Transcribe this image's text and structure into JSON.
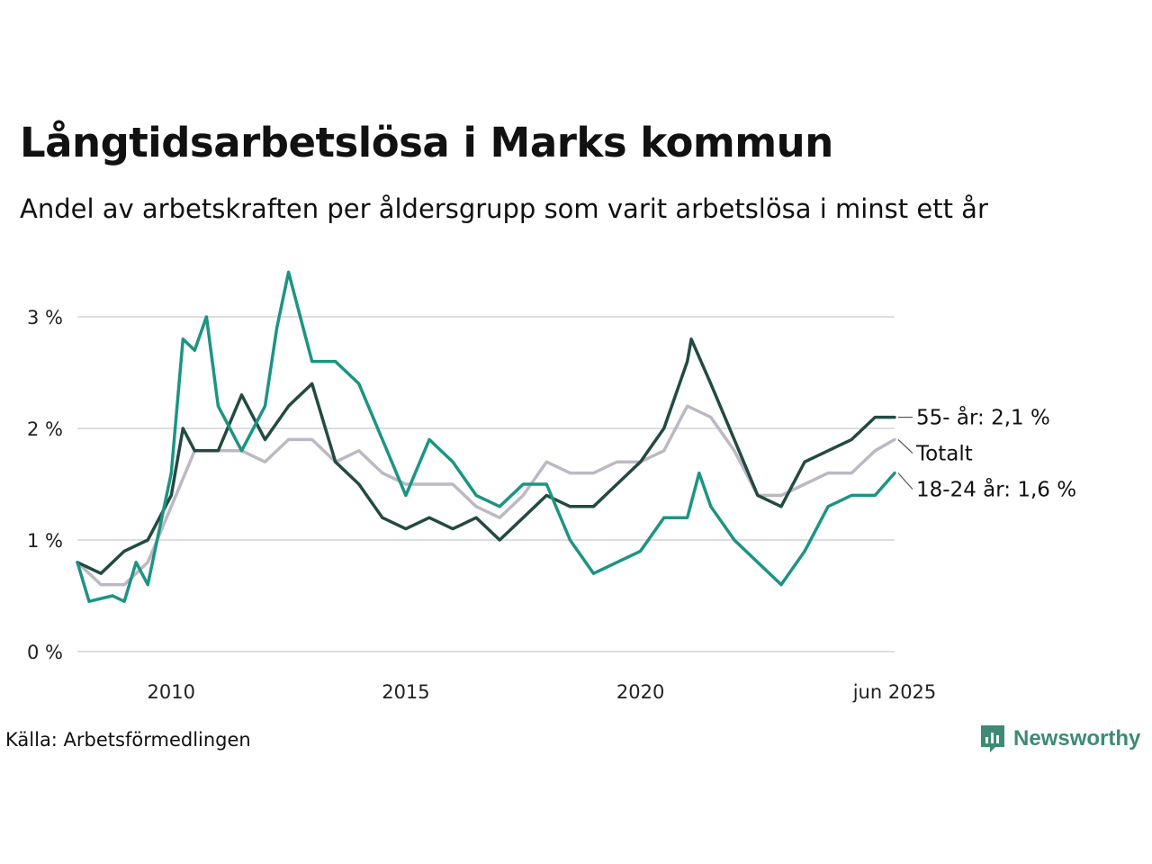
{
  "header": {
    "title": "Långtidsarbetslösa i Marks kommun",
    "subtitle": "Andel av arbetskraften per åldersgrupp som varit arbetslösa i minst ett år"
  },
  "footer": {
    "source": "Källa: Arbetsförmedlingen",
    "brand": "Newsworthy",
    "brand_icon": "newsworthy-logo-icon",
    "brand_color": "#3e8a76"
  },
  "chart_data": {
    "type": "line",
    "x_range": [
      "2008-01",
      "2025-06"
    ],
    "ylim": [
      0,
      3.5
    ],
    "y_ticks": [
      {
        "value": 0,
        "label": "0 %"
      },
      {
        "value": 1,
        "label": "1 %"
      },
      {
        "value": 2,
        "label": "2 %"
      },
      {
        "value": 3,
        "label": "3 %"
      }
    ],
    "x_ticks": [
      {
        "value": "2010-01",
        "label": "2010"
      },
      {
        "value": "2015-01",
        "label": "2015"
      },
      {
        "value": "2020-01",
        "label": "2020"
      },
      {
        "value": "2025-06",
        "label": "jun 2025"
      }
    ],
    "grid": true,
    "legend": "end-of-line labels",
    "series": [
      {
        "name": "Totalt",
        "end_label": "Totalt",
        "color": "#bcb8c4",
        "points": [
          [
            "2008-01",
            0.8
          ],
          [
            "2008-07",
            0.6
          ],
          [
            "2009-01",
            0.6
          ],
          [
            "2009-07",
            0.8
          ],
          [
            "2010-01",
            1.3
          ],
          [
            "2010-07",
            1.8
          ],
          [
            "2011-01",
            1.8
          ],
          [
            "2011-07",
            1.8
          ],
          [
            "2012-01",
            1.7
          ],
          [
            "2012-07",
            1.9
          ],
          [
            "2013-01",
            1.9
          ],
          [
            "2013-07",
            1.7
          ],
          [
            "2014-01",
            1.8
          ],
          [
            "2014-07",
            1.6
          ],
          [
            "2015-01",
            1.5
          ],
          [
            "2015-07",
            1.5
          ],
          [
            "2016-01",
            1.5
          ],
          [
            "2016-07",
            1.3
          ],
          [
            "2017-01",
            1.2
          ],
          [
            "2017-07",
            1.4
          ],
          [
            "2018-01",
            1.7
          ],
          [
            "2018-07",
            1.6
          ],
          [
            "2019-01",
            1.6
          ],
          [
            "2019-07",
            1.7
          ],
          [
            "2020-01",
            1.7
          ],
          [
            "2020-07",
            1.8
          ],
          [
            "2021-01",
            2.2
          ],
          [
            "2021-07",
            2.1
          ],
          [
            "2022-01",
            1.8
          ],
          [
            "2022-07",
            1.4
          ],
          [
            "2023-01",
            1.4
          ],
          [
            "2023-07",
            1.5
          ],
          [
            "2024-01",
            1.6
          ],
          [
            "2024-07",
            1.6
          ],
          [
            "2025-01",
            1.8
          ],
          [
            "2025-06",
            1.9
          ]
        ]
      },
      {
        "name": "55- år",
        "end_label": "55- år: 2,1 %",
        "color": "#234a42",
        "points": [
          [
            "2008-01",
            0.8
          ],
          [
            "2008-07",
            0.7
          ],
          [
            "2009-01",
            0.9
          ],
          [
            "2009-07",
            1.0
          ],
          [
            "2010-01",
            1.4
          ],
          [
            "2010-04",
            2.0
          ],
          [
            "2010-07",
            1.8
          ],
          [
            "2011-01",
            1.8
          ],
          [
            "2011-07",
            2.3
          ],
          [
            "2012-01",
            1.9
          ],
          [
            "2012-07",
            2.2
          ],
          [
            "2013-01",
            2.4
          ],
          [
            "2013-07",
            1.7
          ],
          [
            "2014-01",
            1.5
          ],
          [
            "2014-07",
            1.2
          ],
          [
            "2015-01",
            1.1
          ],
          [
            "2015-07",
            1.2
          ],
          [
            "2016-01",
            1.1
          ],
          [
            "2016-07",
            1.2
          ],
          [
            "2017-01",
            1.0
          ],
          [
            "2017-07",
            1.2
          ],
          [
            "2018-01",
            1.4
          ],
          [
            "2018-07",
            1.3
          ],
          [
            "2019-01",
            1.3
          ],
          [
            "2019-07",
            1.5
          ],
          [
            "2020-01",
            1.7
          ],
          [
            "2020-07",
            2.0
          ],
          [
            "2021-01",
            2.6
          ],
          [
            "2021-02",
            2.8
          ],
          [
            "2021-07",
            2.4
          ],
          [
            "2022-01",
            1.9
          ],
          [
            "2022-07",
            1.4
          ],
          [
            "2023-01",
            1.3
          ],
          [
            "2023-07",
            1.7
          ],
          [
            "2024-01",
            1.8
          ],
          [
            "2024-07",
            1.9
          ],
          [
            "2025-01",
            2.1
          ],
          [
            "2025-06",
            2.1
          ]
        ]
      },
      {
        "name": "18-24 år",
        "end_label": "18-24 år: 1,6 %",
        "color": "#1c9483",
        "points": [
          [
            "2008-01",
            0.8
          ],
          [
            "2008-04",
            0.45
          ],
          [
            "2008-10",
            0.5
          ],
          [
            "2009-01",
            0.45
          ],
          [
            "2009-04",
            0.8
          ],
          [
            "2009-07",
            0.6
          ],
          [
            "2010-01",
            1.6
          ],
          [
            "2010-04",
            2.8
          ],
          [
            "2010-07",
            2.7
          ],
          [
            "2010-10",
            3.0
          ],
          [
            "2011-01",
            2.2
          ],
          [
            "2011-07",
            1.8
          ],
          [
            "2012-01",
            2.2
          ],
          [
            "2012-04",
            2.9
          ],
          [
            "2012-07",
            3.4
          ],
          [
            "2013-01",
            2.6
          ],
          [
            "2013-07",
            2.6
          ],
          [
            "2014-01",
            2.4
          ],
          [
            "2014-07",
            1.9
          ],
          [
            "2015-01",
            1.4
          ],
          [
            "2015-07",
            1.9
          ],
          [
            "2016-01",
            1.7
          ],
          [
            "2016-07",
            1.4
          ],
          [
            "2017-01",
            1.3
          ],
          [
            "2017-07",
            1.5
          ],
          [
            "2018-01",
            1.5
          ],
          [
            "2018-07",
            1.0
          ],
          [
            "2019-01",
            0.7
          ],
          [
            "2019-07",
            0.8
          ],
          [
            "2020-01",
            0.9
          ],
          [
            "2020-07",
            1.2
          ],
          [
            "2021-01",
            1.2
          ],
          [
            "2021-04",
            1.6
          ],
          [
            "2021-07",
            1.3
          ],
          [
            "2022-01",
            1.0
          ],
          [
            "2022-07",
            0.8
          ],
          [
            "2023-01",
            0.6
          ],
          [
            "2023-07",
            0.9
          ],
          [
            "2024-01",
            1.3
          ],
          [
            "2024-07",
            1.4
          ],
          [
            "2025-01",
            1.4
          ],
          [
            "2025-06",
            1.6
          ]
        ]
      }
    ]
  }
}
